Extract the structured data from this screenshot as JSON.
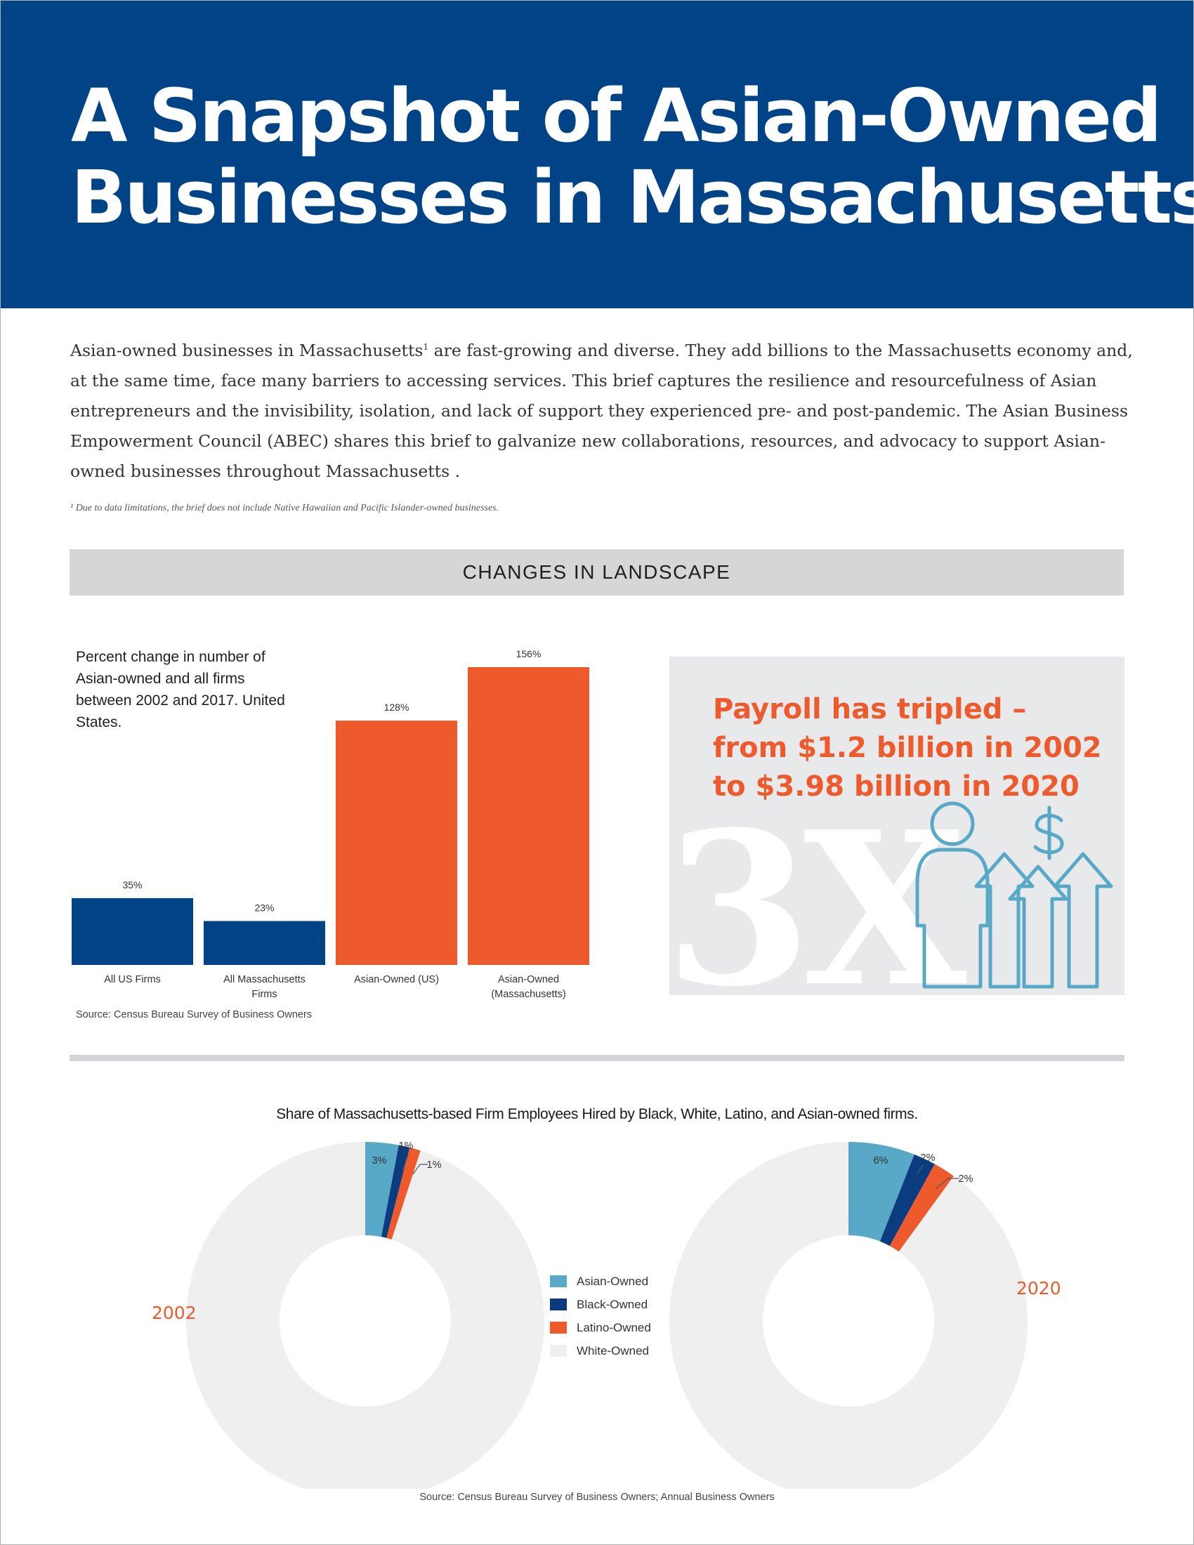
{
  "header": {
    "title_line1": "A Snapshot of Asian-Owned",
    "title_line2": "Businesses in Massachusetts"
  },
  "intro": {
    "paragraph_part1": "Asian-owned businesses in Massachusetts",
    "footnote_marker": "1",
    "paragraph_part2": " are fast-growing and diverse. They add billions to the Massachusetts economy and, at the same time, face many barriers to accessing services. This   brief captures the resilience and resourcefulness of Asian entrepreneurs and the invisibility, isolation, and lack of support they experienced pre- and post-pandemic. The Asian Business Empowerment Council (ABEC) shares this brief to galvanize new collaborations, resources, and advocacy to support Asian-owned businesses throughout Massachusetts .",
    "footnote": "¹ Due to data limitations, the brief does not include Native Hawaiian and Pacific Islander-owned businesses."
  },
  "section": {
    "band_title": "CHANGES IN LANDSCAPE"
  },
  "bar_chart": {
    "note": "Percent change in number of Asian-owned and all firms between 2002 and 2017. United States.",
    "source": "Source: Census Bureau Survey of Business Owners"
  },
  "payroll": {
    "headline": "Payroll has tripled – from $1.2 billion in 2002 to $3.98 billion in 2020",
    "big_text": "3X",
    "icon": "person-dollar-rising-arrows-icon"
  },
  "donut_section": {
    "title": "Share of Massachusetts-based Firm Employees Hired by Black, White, Latino, and Asian-owned firms.",
    "source": "Source: Census Bureau Survey of Business Owners; Annual Business Owners"
  },
  "colors": {
    "navy": "#004387",
    "orange": "#ef5a2d",
    "asian": "#58a8c8",
    "black": "#0c3c80",
    "latino": "#ef5a2d",
    "white_owned": "#efefef"
  },
  "chart_data": [
    {
      "type": "bar",
      "categories": [
        "All US Firms",
        "All Massachusetts Firms",
        "Asian-Owned (US)",
        "Asian-Owned (Massachusetts)"
      ],
      "category_lines": [
        [
          "All US Firms"
        ],
        [
          "All Massachusetts",
          "Firms"
        ],
        [
          "Asian-Owned (US)"
        ],
        [
          "Asian-Owned",
          "(Massachusetts)"
        ]
      ],
      "values": [
        35,
        23,
        128,
        156
      ],
      "value_labels": [
        "35%",
        "23%",
        "128%",
        "156%"
      ],
      "bar_colors": [
        "#004387",
        "#004387",
        "#ef5a2d",
        "#ef5a2d"
      ],
      "unit": "%",
      "ylim": [
        0,
        156
      ]
    },
    {
      "type": "pie",
      "title": "2002",
      "labels": [
        "Asian-Owned",
        "Black-Owned",
        "Latino-Owned",
        "White-Owned"
      ],
      "values": [
        3,
        1,
        1,
        95
      ],
      "value_labels": [
        "3%",
        "1%",
        "1%",
        ""
      ],
      "colors": [
        "#58a8c8",
        "#0c3c80",
        "#ef5a2d",
        "#efefef"
      ]
    },
    {
      "type": "pie",
      "title": "2020",
      "labels": [
        "Asian-Owned",
        "Black-Owned",
        "Latino-Owned",
        "White-Owned"
      ],
      "values": [
        6,
        2,
        2,
        90
      ],
      "value_labels": [
        "6%",
        "2%",
        "2%",
        ""
      ],
      "colors": [
        "#58a8c8",
        "#0c3c80",
        "#ef5a2d",
        "#efefef"
      ]
    }
  ]
}
